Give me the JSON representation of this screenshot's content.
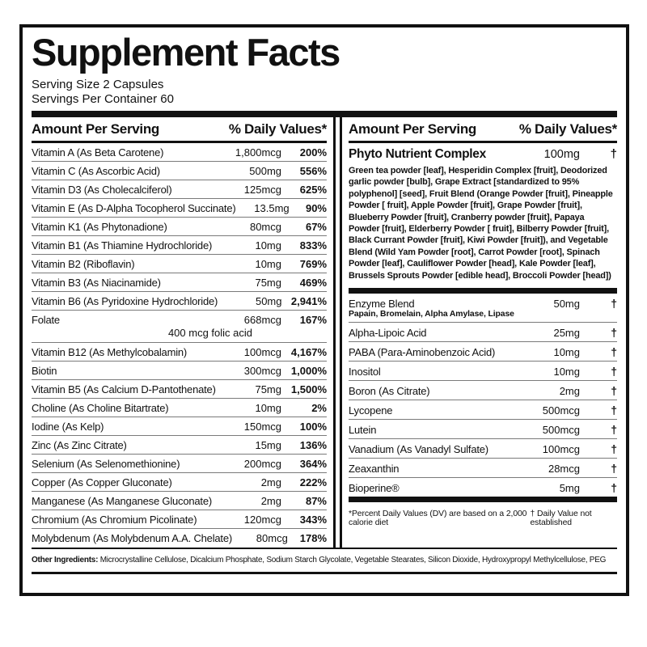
{
  "panel": {
    "title": "Supplement Facts",
    "serving_size": "Serving Size 2 Capsules",
    "servings_per_container": "Servings Per Container 60",
    "left": {
      "header_amount": "Amount Per Serving",
      "header_dv": "% Daily Values*",
      "rows": [
        {
          "name": "Vitamin A (As Beta Carotene)",
          "amount": "1,800mcg",
          "dv": "200%"
        },
        {
          "name": "Vitamin C (As Ascorbic Acid)",
          "amount": "500mg",
          "dv": "556%"
        },
        {
          "name": "Vitamin D3 (As Cholecalciferol)",
          "amount": "125mcg",
          "dv": "625%"
        },
        {
          "name": "Vitamin E (As D-Alpha Tocopherol Succinate)",
          "amount": "13.5mg",
          "dv": "90%"
        },
        {
          "name": "Vitamin K1 (As Phytonadione)",
          "amount": "80mcg",
          "dv": "67%"
        },
        {
          "name": "Vitamin B1 (As Thiamine Hydrochloride)",
          "amount": "10mg",
          "dv": "833%"
        },
        {
          "name": "Vitamin B2 (Riboflavin)",
          "amount": "10mg",
          "dv": "769%"
        },
        {
          "name": "Vitamin B3 (As Niacinamide)",
          "amount": "75mg",
          "dv": "469%"
        },
        {
          "name": "Vitamin B6 (As Pyridoxine Hydrochloride)",
          "amount": "50mg",
          "dv": "2,941%"
        },
        {
          "name": "Folate",
          "amount": "668mcg",
          "dv": "167%",
          "sub": "400 mcg folic acid"
        },
        {
          "name": "Vitamin B12 (As Methylcobalamin)",
          "amount": "100mcg",
          "dv": "4,167%"
        },
        {
          "name": "Biotin",
          "amount": "300mcg",
          "dv": "1,000%"
        },
        {
          "name": "Vitamin B5 (As Calcium D-Pantothenate)",
          "amount": "75mg",
          "dv": "1,500%"
        },
        {
          "name": "Choline (As Choline Bitartrate)",
          "amount": "10mg",
          "dv": "2%"
        },
        {
          "name": "Iodine (As Kelp)",
          "amount": "150mcg",
          "dv": "100%"
        },
        {
          "name": "Zinc (As Zinc Citrate)",
          "amount": "15mg",
          "dv": "136%"
        },
        {
          "name": "Selenium (As Selenomethionine)",
          "amount": "200mcg",
          "dv": "364%"
        },
        {
          "name": "Copper (As Copper Gluconate)",
          "amount": "2mg",
          "dv": "222%"
        },
        {
          "name": "Manganese (As Manganese Gluconate)",
          "amount": "2mg",
          "dv": "87%"
        },
        {
          "name": "Chromium (As Chromium Picolinate)",
          "amount": "120mcg",
          "dv": "343%"
        },
        {
          "name": "Molybdenum (As Molybdenum A.A. Chelate)",
          "amount": "80mcg",
          "dv": "178%"
        }
      ]
    },
    "right": {
      "header_amount": "Amount Per Serving",
      "header_dv": "% Daily Values*",
      "phyto": {
        "name": "Phyto Nutrient Complex",
        "amount": "100mg",
        "dv": "†",
        "description": "Green tea powder [leaf], Hesperidin Complex [fruit], Deodorized garlic powder [bulb], Grape Extract [standardized to 95% polyphenol] [seed], Fruit Blend (Orange Powder [fruit], Pineapple Powder [ fruit], Apple Powder [fruit], Grape Powder [fruit], Blueberry Powder [fruit], Cranberry powder [fruit], Papaya Powder [fruit], Elderberry Powder [ fruit], Bilberry Powder [fruit], Black Currant Powder [fruit], Kiwi Powder [fruit]), and Vegetable Blend (Wild Yam Powder [root], Carrot Powder [root], Spinach Powder [leaf], Cauliflower Powder [head], Kale Powder [leaf], Brussels Sprouts Powder [edible head], Broccoli Powder [head])"
      },
      "rows": [
        {
          "name": "Enzyme Blend",
          "amount": "50mg",
          "dv": "†",
          "sub": "Papain, Bromelain, Alpha Amylase, Lipase"
        },
        {
          "name": "Alpha-Lipoic Acid",
          "amount": "25mg",
          "dv": "†"
        },
        {
          "name": "PABA (Para-Aminobenzoic Acid)",
          "amount": "10mg",
          "dv": "†"
        },
        {
          "name": "Inositol",
          "amount": "10mg",
          "dv": "†"
        },
        {
          "name": "Boron (As Citrate)",
          "amount": "2mg",
          "dv": "†"
        },
        {
          "name": "Lycopene",
          "amount": "500mcg",
          "dv": "†"
        },
        {
          "name": "Lutein",
          "amount": "500mcg",
          "dv": "†"
        },
        {
          "name": "Vanadium (As Vanadyl Sulfate)",
          "amount": "100mcg",
          "dv": "†"
        },
        {
          "name": "Zeaxanthin",
          "amount": "28mcg",
          "dv": "†"
        },
        {
          "name": "Bioperine®",
          "amount": "5mg",
          "dv": "†"
        }
      ],
      "footnote_dv": "*Percent Daily Values (DV) are based on a 2,000 calorie diet",
      "footnote_dagger": "† Daily Value not established"
    },
    "other_ingredients": {
      "label": "Other Ingredients:",
      "text": " Microcrystalline Cellulose, Dicalcium Phosphate, Sodium Starch Glycolate, Vegetable Stearates, Silicon Dioxide, Hydroxypropyl Methylcellulose, PEG"
    },
    "colors": {
      "ink": "#111111",
      "paper": "#ffffff",
      "hairline": "#7a7a7a"
    }
  }
}
